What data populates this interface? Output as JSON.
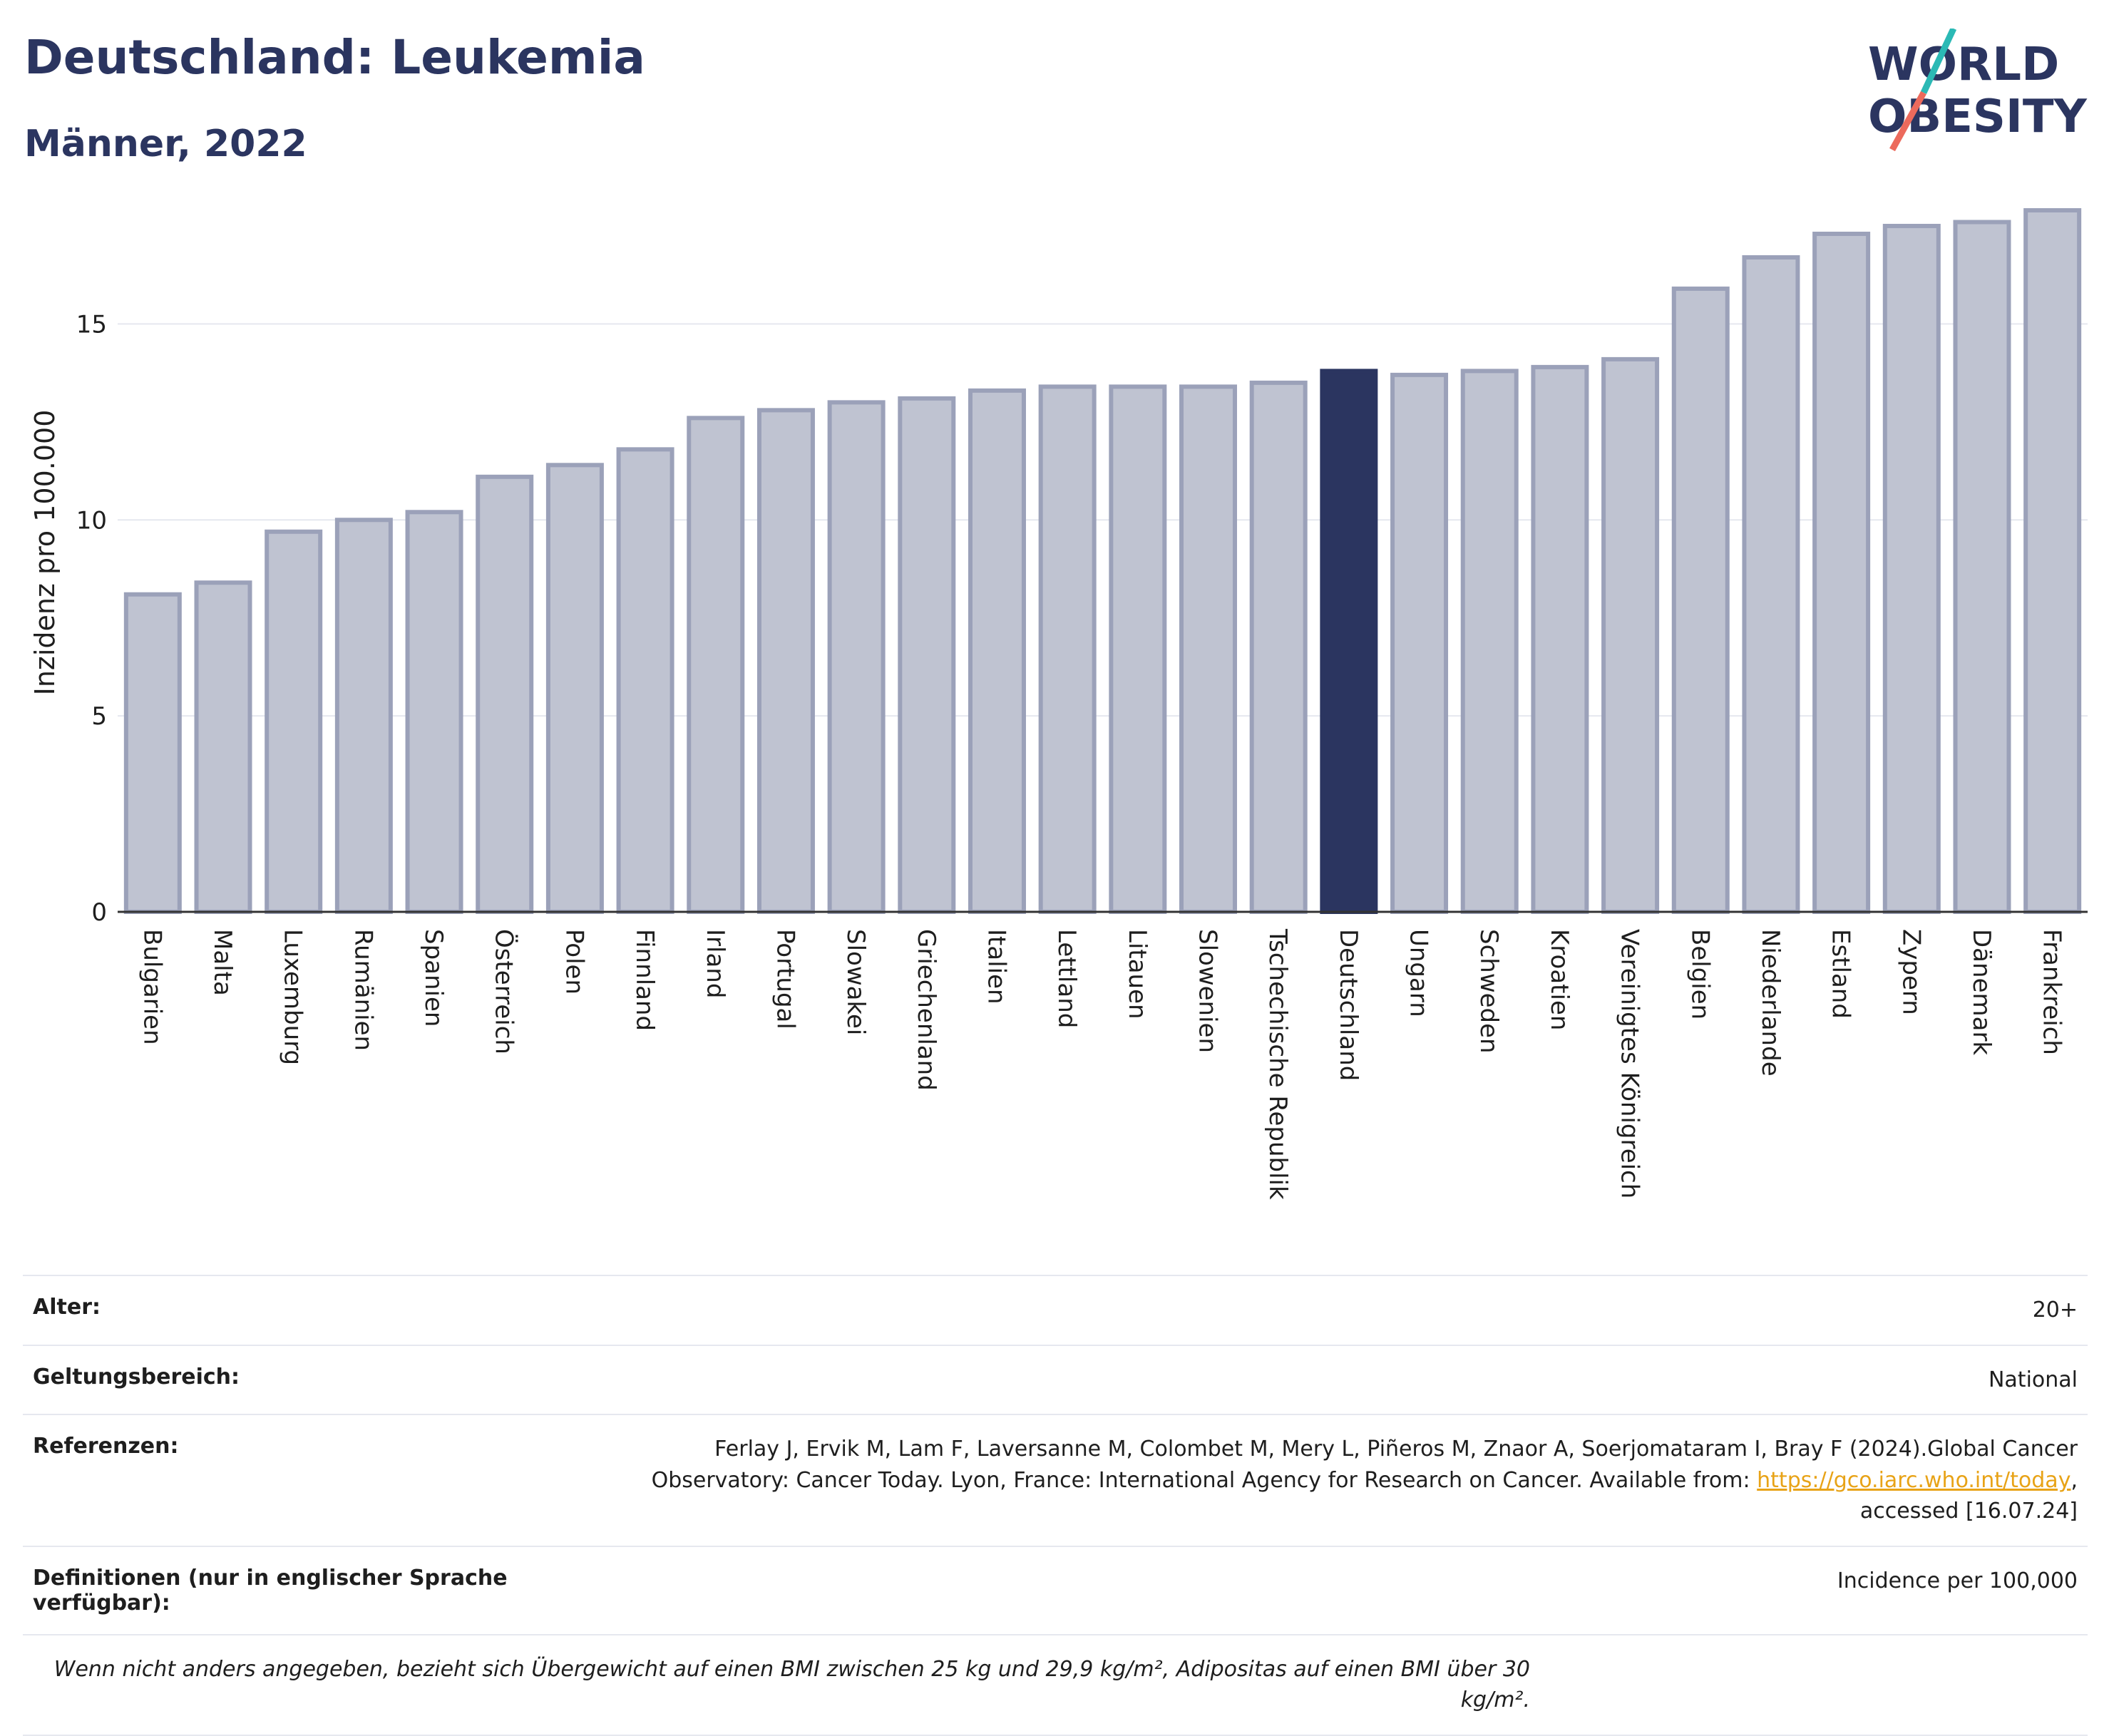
{
  "header": {
    "title": "Deutschland: Leukemia",
    "subtitle": "Männer, 2022"
  },
  "logo": {
    "line1": "WORLD",
    "line2": "OBESITY"
  },
  "colors": {
    "bar": "#bfc3d1",
    "bar_border": "#9ba1b9",
    "highlight": "#2b3560",
    "grid": "#e6e8ef"
  },
  "chart_data": {
    "type": "bar",
    "ylabel": "Inzidenz pro 100.000",
    "ylim": [
      0,
      18.5
    ],
    "yticks": [
      0,
      5,
      10,
      15
    ],
    "highlight": "Deutschland",
    "categories": [
      "Bulgarien",
      "Malta",
      "Luxemburg",
      "Rumänien",
      "Spanien",
      "Österreich",
      "Polen",
      "Finnland",
      "Irland",
      "Portugal",
      "Slowakei",
      "Griechenland",
      "Italien",
      "Lettland",
      "Litauen",
      "Slowenien",
      "Tschechische Republik",
      "Deutschland",
      "Ungarn",
      "Schweden",
      "Kroatien",
      "Vereinigtes Königreich",
      "Belgien",
      "Niederlande",
      "Estland",
      "Zypern",
      "Dänemark",
      "Frankreich"
    ],
    "values": [
      8.1,
      8.4,
      9.7,
      10.0,
      10.2,
      11.1,
      11.4,
      11.8,
      12.6,
      12.8,
      13.0,
      13.1,
      13.3,
      13.4,
      13.4,
      13.4,
      13.5,
      13.8,
      13.7,
      13.8,
      13.9,
      14.1,
      15.9,
      16.7,
      17.3,
      17.5,
      17.6,
      17.9
    ]
  },
  "info": {
    "age_label": "Alter:",
    "age_value": "20+",
    "scope_label": "Geltungsbereich:",
    "scope_value": "National",
    "ref_label": "Referenzen:",
    "ref_text_1": "Ferlay J, Ervik M, Lam F, Laversanne M, Colombet M, Mery L, Piñeros M, Znaor A, Soerjomataram I, Bray F (2024).Global Cancer Observatory: Cancer Today. Lyon, France: International Agency for Research on Cancer. Available from:",
    "ref_link": "https://gco.iarc.who.int/today",
    "ref_text_2": ", accessed [16.07.24]",
    "def_label": "Definitionen (nur in englischer Sprache verfügbar):",
    "def_value": "Incidence per 100,000",
    "note": "Wenn nicht anders angegeben, bezieht sich Übergewicht auf einen BMI zwischen 25 kg und 29,9 kg/m², Adipositas auf einen BMI über 30 kg/m²."
  }
}
